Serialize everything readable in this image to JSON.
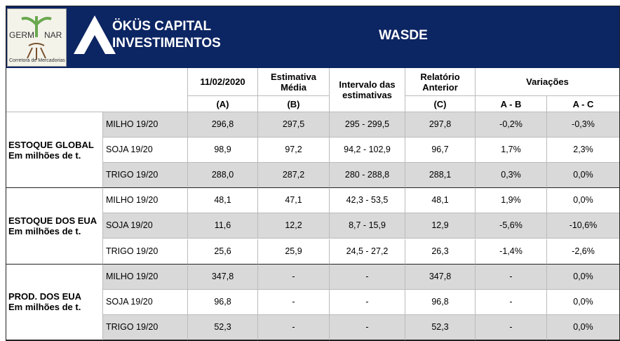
{
  "header": {
    "logo": {
      "left": "GERM",
      "right": "NAR",
      "caption": "Corretora de Mercadorias"
    },
    "company": [
      "ÖKÜS CAPITAL",
      "INVESTIMENTOS"
    ],
    "title": "WASDE"
  },
  "table": {
    "columns": [
      [
        "11/02/2020"
      ],
      [
        "Estimativa",
        "Média"
      ],
      [
        "Intervalo das",
        "estimativas"
      ],
      [
        "Relatório",
        "Anterior"
      ]
    ],
    "variations": "Variações",
    "subheaders": [
      "(A)",
      "(B)",
      "(C)",
      "A - B",
      "A - C"
    ],
    "groups": [
      {
        "label": [
          "ESTOQUE GLOBAL",
          "Em milhões de t."
        ],
        "rows": [
          [
            "MILHO 19/20",
            "296,8",
            "297,5",
            "295 - 299,5",
            "297,8",
            "-0,2%",
            "-0,3%"
          ],
          [
            "SOJA 19/20",
            "98,9",
            "97,2",
            "94,2 - 102,9",
            "96,7",
            "1,7%",
            "2,3%"
          ],
          [
            "TRIGO 19/20",
            "288,0",
            "287,2",
            "280 - 288,8",
            "288,1",
            "0,3%",
            "0,0%"
          ]
        ]
      },
      {
        "label": [
          "ESTOQUE DOS EUA",
          "Em milhões de t."
        ],
        "rows": [
          [
            "MILHO 19/20",
            "48,1",
            "47,1",
            "42,3 - 53,5",
            "48,1",
            "1,9%",
            "0,0%"
          ],
          [
            "SOJA 19/20",
            "11,6",
            "12,2",
            "8,7 - 15,9",
            "12,9",
            "-5,6%",
            "-10,6%"
          ],
          [
            "TRIGO 19/20",
            "25,6",
            "25,9",
            "24,5 - 27,2",
            "26,3",
            "-1,4%",
            "-2,6%"
          ]
        ]
      },
      {
        "label": [
          "PROD. DOS EUA",
          "Em milhões de t."
        ],
        "rows": [
          [
            "MILHO 19/20",
            "347,8",
            "-",
            "-",
            "347,8",
            "-",
            "0,0%"
          ],
          [
            "SOJA 19/20",
            "96,8",
            "-",
            "-",
            "96,8",
            "-",
            "0,0%"
          ],
          [
            "TRIGO 19/20",
            "52,3",
            "-",
            "-",
            "52,3",
            "-",
            "0,0%"
          ]
        ]
      }
    ]
  }
}
